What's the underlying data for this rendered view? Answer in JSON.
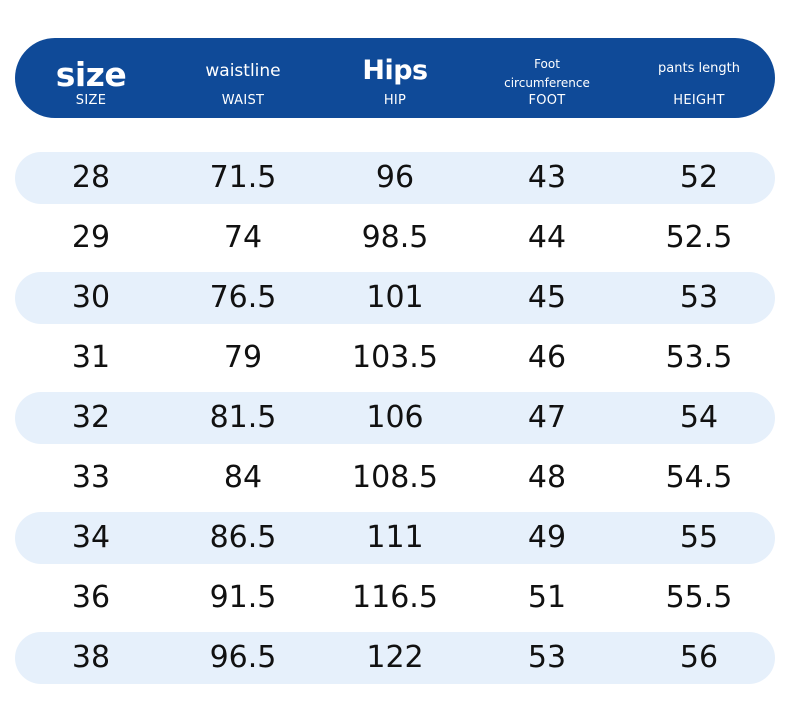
{
  "colors": {
    "header_bg": "#0f4a98",
    "header_text": "#ffffff",
    "row_shade": "#e6f0fb",
    "body_text": "#111111"
  },
  "header": {
    "columns": [
      {
        "main": "size",
        "sub": "SIZE"
      },
      {
        "main": "waistline",
        "sub": "WAIST"
      },
      {
        "main": "Hips",
        "sub": "HIP"
      },
      {
        "main_line1": "Foot",
        "main_line2": "circumference",
        "sub": "FOOT"
      },
      {
        "main": "pants length",
        "sub": "HEIGHT"
      }
    ]
  },
  "rows": [
    {
      "size": "28",
      "waist": "71.5",
      "hip": "96",
      "foot": "43",
      "length": "52"
    },
    {
      "size": "29",
      "waist": "74",
      "hip": "98.5",
      "foot": "44",
      "length": "52.5"
    },
    {
      "size": "30",
      "waist": "76.5",
      "hip": "101",
      "foot": "45",
      "length": "53"
    },
    {
      "size": "31",
      "waist": "79",
      "hip": "103.5",
      "foot": "46",
      "length": "53.5"
    },
    {
      "size": "32",
      "waist": "81.5",
      "hip": "106",
      "foot": "47",
      "length": "54"
    },
    {
      "size": "33",
      "waist": "84",
      "hip": "108.5",
      "foot": "48",
      "length": "54.5"
    },
    {
      "size": "34",
      "waist": "86.5",
      "hip": "111",
      "foot": "49",
      "length": "55"
    },
    {
      "size": "36",
      "waist": "91.5",
      "hip": "116.5",
      "foot": "51",
      "length": "55.5"
    },
    {
      "size": "38",
      "waist": "96.5",
      "hip": "122",
      "foot": "53",
      "length": "56"
    }
  ]
}
